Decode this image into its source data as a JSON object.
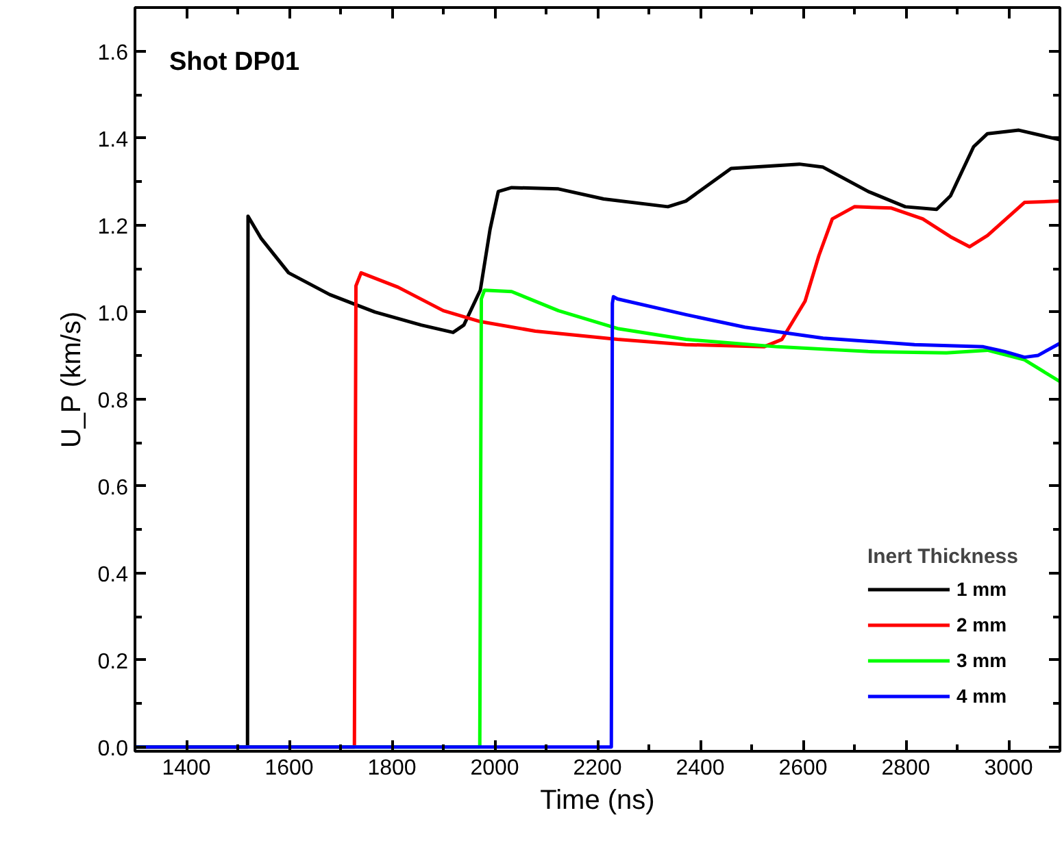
{
  "chart_data": {
    "type": "line",
    "annotations": [
      "Shot DP01"
    ],
    "xlabel": "Time (ns)",
    "ylabel": "U_P (km/s)",
    "legend_title": "Inert Thickness",
    "xlim": [
      1300,
      3100
    ],
    "ylim": [
      -0.01,
      1.7
    ],
    "xticks": [
      1400,
      1600,
      1800,
      2000,
      2200,
      2400,
      2600,
      2800,
      3000
    ],
    "yticks": [
      {
        "value": 0,
        "label": "0.0"
      },
      0.2,
      0.4,
      0.6,
      0.8,
      {
        "value": 1,
        "label": "1.0"
      },
      1.2,
      1.4,
      1.6
    ],
    "grid": false,
    "legend": "bottom right",
    "marker": "none",
    "line_style": "solid",
    "series": [
      {
        "name": "1 mm",
        "color": "#000000",
        "x": [
          1300,
          1519,
          1520,
          1545,
          1599,
          1679,
          1767,
          1857,
          1919,
          1940,
          1972,
          1991,
          2007,
          2033,
          2124,
          2212,
          2337,
          2372,
          2460,
          2593,
          2639,
          2727,
          2799,
          2860,
          2887,
          2932,
          2959,
          3020,
          3100
        ],
        "values": [
          0.0,
          0.0,
          1.22,
          1.17,
          1.09,
          1.04,
          1.0,
          0.97,
          0.953,
          0.97,
          1.05,
          1.19,
          1.277,
          1.286,
          1.283,
          1.26,
          1.242,
          1.255,
          1.33,
          1.34,
          1.333,
          1.277,
          1.242,
          1.236,
          1.267,
          1.38,
          1.41,
          1.418,
          1.396
        ]
      },
      {
        "name": "2 mm",
        "color": "#ff0000",
        "x": [
          1300,
          1727,
          1730,
          1740,
          1812,
          1900,
          1972,
          2079,
          2239,
          2372,
          2524,
          2559,
          2604,
          2631,
          2657,
          2700,
          2772,
          2833,
          2887,
          2924,
          2959,
          3031,
          3100
        ],
        "values": [
          0.0,
          0.0,
          1.06,
          1.09,
          1.057,
          1.003,
          0.978,
          0.956,
          0.937,
          0.925,
          0.92,
          0.937,
          1.025,
          1.13,
          1.214,
          1.242,
          1.239,
          1.214,
          1.173,
          1.15,
          1.176,
          1.252,
          1.255
        ]
      },
      {
        "name": "3 mm",
        "color": "#00ff00",
        "x": [
          1300,
          1971,
          1974,
          1980,
          2033,
          2124,
          2239,
          2372,
          2551,
          2727,
          2879,
          2959,
          3031,
          3100
        ],
        "values": [
          0.0,
          0.0,
          1.03,
          1.05,
          1.047,
          1.003,
          0.962,
          0.937,
          0.92,
          0.909,
          0.906,
          0.912,
          0.89,
          0.84
        ]
      },
      {
        "name": "4 mm",
        "color": "#0000ff",
        "x": [
          1300,
          2227,
          2229,
          2231,
          2239,
          2372,
          2487,
          2639,
          2817,
          2951,
          2993,
          3031,
          3057,
          3100
        ],
        "values": [
          0.0,
          0.0,
          1.02,
          1.035,
          1.03,
          0.994,
          0.965,
          0.94,
          0.925,
          0.92,
          0.909,
          0.896,
          0.9,
          0.928
        ]
      }
    ]
  }
}
